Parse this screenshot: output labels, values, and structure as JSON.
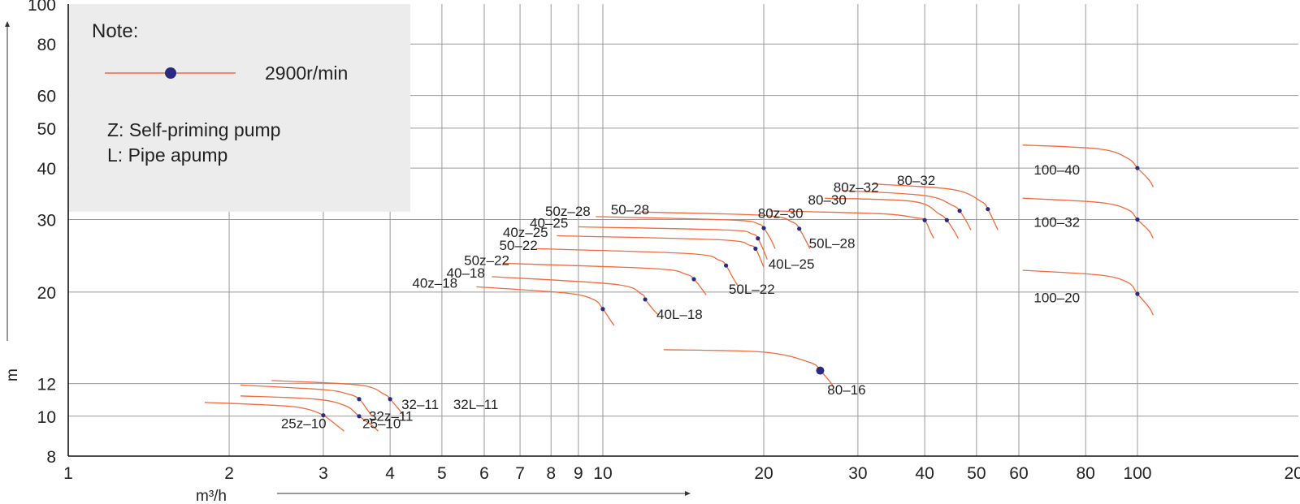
{
  "chart_data": {
    "type": "line",
    "x_scale": "log",
    "y_scale": "log",
    "xlim": [
      1,
      200
    ],
    "ylim": [
      8,
      100
    ],
    "xlabel": "m³/h",
    "ylabel": "m",
    "x_ticks": [
      1,
      2,
      3,
      4,
      5,
      6,
      7,
      8,
      9,
      10,
      20,
      30,
      40,
      50,
      60,
      80,
      100,
      200
    ],
    "y_ticks": [
      8,
      10,
      12,
      20,
      30,
      40,
      50,
      60,
      80,
      100
    ],
    "grid": true,
    "legend": {
      "title": "Note:",
      "speed_label": "2900r/min",
      "line_color": "#f06a3c",
      "point_color": "#2a2a80",
      "notes": [
        "Z: Self-priming pump",
        "L: Pipe apump"
      ]
    },
    "series": [
      {
        "name": "25z-10",
        "x": [
          1.8,
          2.5,
          2.8,
          3.0,
          3.18,
          3.28
        ],
        "y": [
          10.8,
          10.6,
          10.4,
          10.05,
          9.5,
          9.2
        ],
        "rated": [
          3.0,
          10.05
        ]
      },
      {
        "name": "25-10",
        "x": [
          2.1,
          2.9,
          3.3,
          3.5,
          3.7,
          3.8
        ],
        "y": [
          11.2,
          11.0,
          10.6,
          10.0,
          9.5,
          9.2
        ],
        "rated": [
          3.5,
          10.0
        ]
      },
      {
        "name": "32z-11",
        "x": [
          2.1,
          3.0,
          3.35,
          3.5,
          3.62,
          3.7
        ],
        "y": [
          11.9,
          11.6,
          11.3,
          11.0,
          10.4,
          10.0
        ],
        "rated": [
          3.5,
          11.0
        ]
      },
      {
        "name": "32-11",
        "x": [
          2.4,
          3.5,
          3.9,
          4.0,
          4.15,
          4.25
        ],
        "y": [
          12.2,
          11.9,
          11.3,
          11.0,
          10.4,
          10.0
        ],
        "rated": [
          4.0,
          11.0
        ]
      },
      {
        "name": "40z-18",
        "x": [
          5.8,
          8.5,
          9.6,
          10.0,
          10.3,
          10.5
        ],
        "y": [
          20.6,
          19.9,
          19.2,
          18.2,
          17.2,
          16.6
        ],
        "rated": [
          10.0,
          18.2
        ]
      },
      {
        "name": "40-18",
        "x": [
          6.2,
          10.5,
          11.8,
          12.0,
          12.4,
          12.7
        ],
        "y": [
          21.8,
          20.9,
          19.8,
          19.2,
          18.2,
          17.6
        ],
        "rated": [
          12.0,
          19.2
        ]
      },
      {
        "name": "50z-22",
        "x": [
          6.5,
          12.5,
          14.3,
          14.8,
          15.3,
          15.6
        ],
        "y": [
          23.5,
          22.8,
          22.1,
          21.5,
          20.4,
          19.7
        ],
        "rated": [
          14.8,
          21.5
        ]
      },
      {
        "name": "50-22",
        "x": [
          7.5,
          14.5,
          16.5,
          17.0,
          17.5,
          17.9
        ],
        "y": [
          25.5,
          24.8,
          23.9,
          23.2,
          21.7,
          20.7
        ],
        "rated": [
          17.0,
          23.2
        ]
      },
      {
        "name": "40z-25",
        "x": [
          8.2,
          16.5,
          18.8,
          19.3,
          19.7,
          20.0
        ],
        "y": [
          27.4,
          26.8,
          26.0,
          25.5,
          24.1,
          23.0
        ],
        "rated": [
          19.3,
          25.5
        ]
      },
      {
        "name": "40-25",
        "x": [
          9.0,
          17.0,
          19.0,
          19.5,
          20.0,
          20.3
        ],
        "y": [
          28.8,
          28.3,
          27.7,
          27.0,
          25.2,
          24.0
        ],
        "rated": [
          19.5,
          27.0
        ]
      },
      {
        "name": "50z-28",
        "x": [
          9.7,
          17.5,
          19.5,
          20.0,
          20.6,
          21.0
        ],
        "y": [
          30.5,
          29.9,
          29.3,
          28.6,
          26.9,
          25.5
        ],
        "rated": [
          20.0,
          28.6
        ]
      },
      {
        "name": "50-28",
        "x": [
          11.7,
          20.0,
          22.6,
          23.3,
          24.0,
          24.4
        ],
        "y": [
          31.3,
          30.7,
          29.6,
          28.5,
          26.6,
          25.5
        ],
        "rated": [
          23.3,
          28.5
        ]
      },
      {
        "name": "80-16",
        "x": [
          13.0,
          20.0,
          24.4,
          25.5,
          26.5,
          27.0
        ],
        "y": [
          14.5,
          14.3,
          13.5,
          12.9,
          12.2,
          11.8
        ],
        "rated": [
          25.5,
          12.9
        ]
      },
      {
        "name": "80z-30",
        "x": [
          20.5,
          33.0,
          38.5,
          40.0,
          41.0,
          41.6
        ],
        "y": [
          31.5,
          31.0,
          30.3,
          29.9,
          28.0,
          27.0
        ],
        "rated": [
          40.0,
          29.9
        ]
      },
      {
        "name": "80-30",
        "x": [
          26.0,
          38.0,
          42.5,
          44.0,
          45.5,
          46.2
        ],
        "y": [
          33.8,
          33.2,
          31.0,
          29.9,
          28.0,
          27.0
        ],
        "rated": [
          44.0,
          29.9
        ]
      },
      {
        "name": "80z-32",
        "x": [
          28.0,
          40.0,
          45.0,
          46.5,
          48.0,
          48.8
        ],
        "y": [
          35.3,
          34.3,
          32.5,
          31.5,
          29.5,
          28.3
        ],
        "rated": [
          46.5,
          31.5
        ]
      },
      {
        "name": "80-32",
        "x": [
          32.0,
          45.0,
          51.0,
          52.5,
          54.0,
          54.8
        ],
        "y": [
          36.6,
          35.5,
          33.2,
          31.8,
          29.5,
          28.3
        ],
        "rated": [
          52.5,
          31.8
        ]
      },
      {
        "name": "100-40",
        "x": [
          61.0,
          85.0,
          96.0,
          100.0,
          105.0,
          107.0
        ],
        "y": [
          45.5,
          44.5,
          42.2,
          40.0,
          37.5,
          36.0
        ],
        "rated": [
          100.0,
          40.0
        ]
      },
      {
        "name": "100-32",
        "x": [
          61.0,
          85.0,
          96.0,
          100.0,
          105.0,
          107.0
        ],
        "y": [
          33.8,
          33.0,
          31.7,
          30.0,
          28.2,
          27.0
        ],
        "rated": [
          100.0,
          30.0
        ]
      },
      {
        "name": "100-20",
        "x": [
          61.0,
          85.0,
          96.0,
          100.0,
          105.0,
          107.0
        ],
        "y": [
          22.6,
          22.0,
          21.1,
          19.8,
          18.4,
          17.6
        ],
        "rated": [
          100.0,
          19.8
        ]
      }
    ],
    "labels": [
      {
        "text": "25z-10",
        "x": 2.5,
        "y": 9.35
      },
      {
        "text": "25-10",
        "x": 3.55,
        "y": 9.35
      },
      {
        "text": "32z-11",
        "x": 3.65,
        "y": 9.75
      },
      {
        "text": "32-11",
        "x": 4.2,
        "y": 10.4
      },
      {
        "text": "32L-11",
        "x": 5.25,
        "y": 10.4
      },
      {
        "text": "40z-18",
        "x": 4.4,
        "y": 20.5
      },
      {
        "text": "40-18",
        "x": 5.1,
        "y": 21.7
      },
      {
        "text": "50z-22",
        "x": 5.5,
        "y": 23.3
      },
      {
        "text": "40L-18",
        "x": 12.6,
        "y": 17.2
      },
      {
        "text": "50-22",
        "x": 6.4,
        "y": 25.3
      },
      {
        "text": "40z-25",
        "x": 6.5,
        "y": 27.2
      },
      {
        "text": "40-25",
        "x": 7.3,
        "y": 28.7
      },
      {
        "text": "50z-28",
        "x": 7.8,
        "y": 30.6
      },
      {
        "text": "50-28",
        "x": 10.35,
        "y": 30.9
      },
      {
        "text": "50L-22",
        "x": 17.2,
        "y": 19.8
      },
      {
        "text": "40L-25",
        "x": 20.4,
        "y": 22.8
      },
      {
        "text": "50L-28",
        "x": 24.3,
        "y": 25.6
      },
      {
        "text": "80-16",
        "x": 26.3,
        "y": 11.3
      },
      {
        "text": "80z-30",
        "x": 19.5,
        "y": 30.3
      },
      {
        "text": "80-30",
        "x": 24.2,
        "y": 32.6
      },
      {
        "text": "80z-32",
        "x": 27.0,
        "y": 35.0
      },
      {
        "text": "80-32",
        "x": 35.5,
        "y": 36.4
      },
      {
        "text": "100-40",
        "x": 64.0,
        "y": 38.6
      },
      {
        "text": "100-32",
        "x": 64.0,
        "y": 28.8
      },
      {
        "text": "100-20",
        "x": 64.0,
        "y": 18.9
      }
    ]
  }
}
